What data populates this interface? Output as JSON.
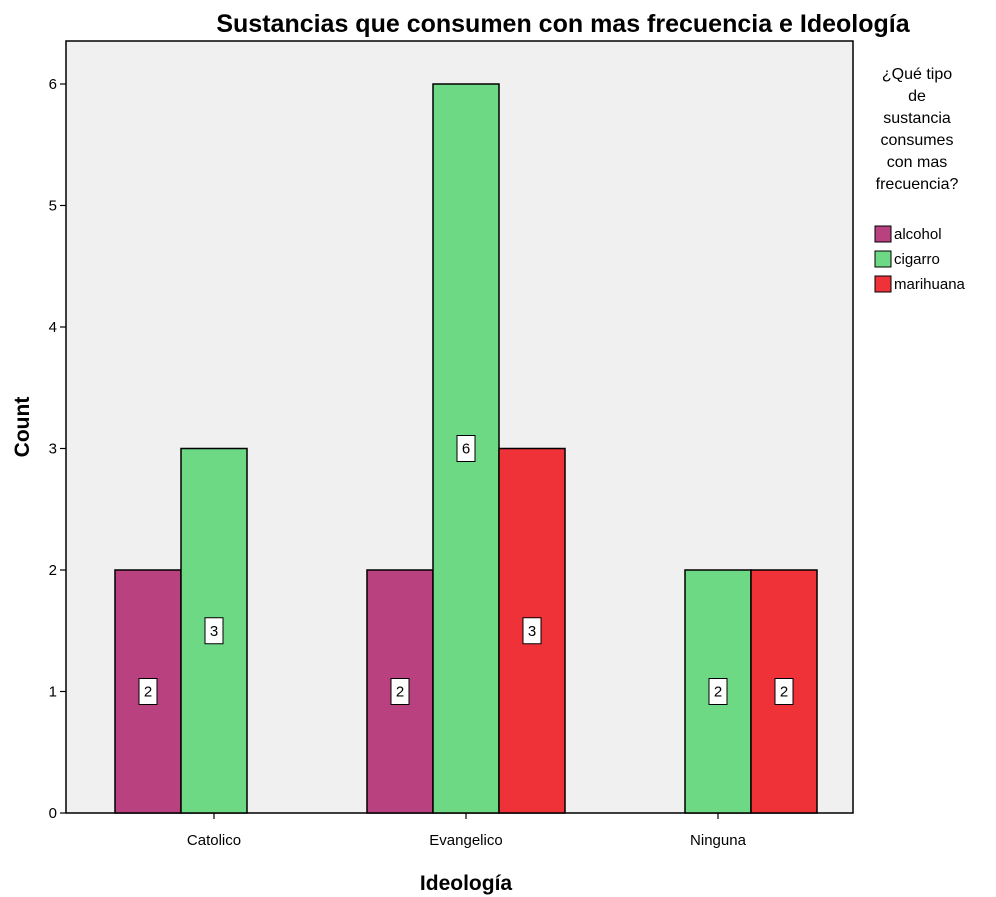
{
  "chart_data": {
    "type": "bar",
    "title": "Sustancias que consumen con mas frecuencia e Ideología",
    "xlabel": "Ideología",
    "ylabel": "Count",
    "categories": [
      "Catolico",
      "Evangelico",
      "Ninguna"
    ],
    "ylim": [
      0,
      6
    ],
    "yticks": [
      0,
      1,
      2,
      3,
      4,
      5,
      6
    ],
    "legend": {
      "title_lines": [
        "¿Qué tipo",
        "de",
        "sustancia",
        "consumes",
        "con mas",
        "frecuencia?"
      ],
      "placement": "right"
    },
    "series": [
      {
        "name": "alcohol",
        "color": "#b94180",
        "values": [
          2,
          2,
          null
        ]
      },
      {
        "name": "cigarro",
        "color": "#6ed984",
        "values": [
          3,
          6,
          2
        ]
      },
      {
        "name": "marihuana",
        "color": "#ee3237",
        "values": [
          null,
          3,
          2
        ]
      }
    ],
    "plot_background": "#f0f0f0",
    "grid": false
  }
}
